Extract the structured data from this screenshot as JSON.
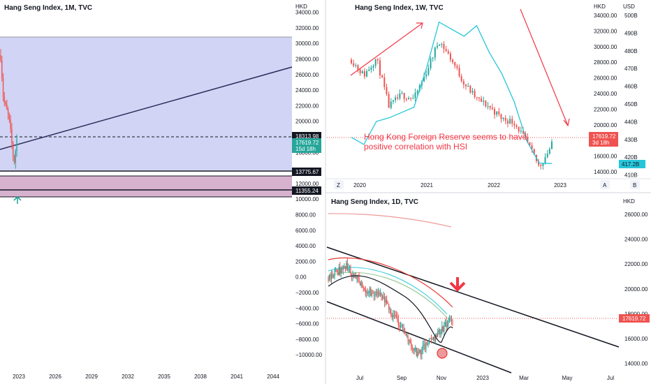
{
  "panels": {
    "monthly": {
      "title": "Hang Seng Index, 1M, TVC",
      "currency": "HKD",
      "price_ticks": [
        "34000.00",
        "32000.00",
        "30000.00",
        "28000.00",
        "26000.00",
        "24000.00",
        "22000.00",
        "20000.00",
        "18000.00",
        "16000.00",
        "12000.00",
        "10000.00",
        "8000.00",
        "6000.00",
        "4000.00",
        "2000.00",
        "0.00",
        "−2000.00",
        "−4000.00",
        "−6000.00",
        "−8000.00",
        "−10000.00"
      ],
      "time_ticks": [
        "2023",
        "2026",
        "2029",
        "2032",
        "2035",
        "2038",
        "2041",
        "2044"
      ],
      "price_badge": {
        "value": "17619.72",
        "countdown": "15d 18h",
        "color": "#26a69a"
      },
      "level_badges": [
        {
          "value": "18313.98",
          "color": "#131722"
        },
        {
          "value": "13775.67",
          "color": "#131722"
        },
        {
          "value": "11355.24",
          "color": "#131722"
        }
      ],
      "zone_color": "#d1d4f4",
      "lower_zone_color": "#d7b2cf",
      "arrow_color": "#26a69a",
      "trendline_color": "#2a2e5a"
    },
    "weekly": {
      "title": "Hang Seng Index, 1W, TVC",
      "currency_left": "HKD",
      "currency_right": "USD",
      "price_ticks": [
        "34000.00",
        "32000.00",
        "30000.00",
        "28000.00",
        "26000.00",
        "24000.00",
        "22000.00",
        "20000.00",
        "18000.00",
        "16000.00",
        "14000.00"
      ],
      "usd_ticks": [
        "500B",
        "490B",
        "480B",
        "470B",
        "460B",
        "450B",
        "440B",
        "430B",
        "420B",
        "410B"
      ],
      "time_ticks": [
        "2020",
        "2021",
        "2022",
        "2023"
      ],
      "price_badge": {
        "value": "17619.72",
        "countdown": "3d 18h",
        "color": "#ef5350"
      },
      "reserve_badge": {
        "value": "417.2B",
        "color": "#26c6da"
      },
      "annotation_line1": "Hong Kong Foreign Reserve seems to have",
      "annotation_line2": "positive correlation with HSI",
      "annotation_color": "#f23645",
      "reserve_line_color": "#26c6da",
      "footer_left": "Z",
      "footer_right_a": "A",
      "footer_right_b": "B"
    },
    "daily": {
      "title": "Hang Seng Index, 1D, TVC",
      "currency": "HKD",
      "price_ticks": [
        "26000.00",
        "24000.00",
        "22000.00",
        "20000.00",
        "18000.00",
        "16000.00",
        "14000.00"
      ],
      "time_ticks": [
        "Jul",
        "Sep",
        "Nov",
        "2023",
        "Mar",
        "May",
        "Jul"
      ],
      "price_badge": {
        "value": "17619.72",
        "color": "#ef5350"
      },
      "channel_color": "#131722",
      "down_arrow_color": "#f23645",
      "ma_colors": [
        "#ef9a9a",
        "#e53935",
        "#4dd0e1",
        "#9ccc9c",
        "#131722"
      ]
    }
  },
  "chart_data": [
    {
      "type": "line",
      "panel": "monthly",
      "title": "Hang Seng Index, 1M, TVC",
      "series": [
        {
          "x": [
            "2022-01",
            "2022-03",
            "2022-05",
            "2022-07",
            "2022-09",
            "2022-10",
            "2022-11"
          ],
          "values": [
            28500,
            23000,
            21500,
            20500,
            17500,
            14700,
            17619.72
          ]
        }
      ],
      "levels": [
        18313.98,
        13775.67,
        11355.24
      ],
      "last_price": 17619.72,
      "ylim": [
        -11000,
        35000
      ]
    },
    {
      "type": "line",
      "panel": "weekly",
      "title": "Hang Seng Index, 1W, TVC",
      "series": [
        {
          "x": [
            "2019-07",
            "2019-10",
            "2020-01",
            "2020-03",
            "2020-06",
            "2020-09",
            "2020-12",
            "2021-02",
            "2021-05",
            "2021-08",
            "2021-11",
            "2022-02",
            "2022-04",
            "2022-07",
            "2022-09",
            "2022-10",
            "2022-11"
          ],
          "values": [
            28500,
            26500,
            28700,
            22500,
            24000,
            23500,
            27000,
            31000,
            28500,
            25500,
            23500,
            22500,
            21000,
            20500,
            18000,
            14800,
            17619.72
          ]
        },
        {
          "x": [
            "2019-07",
            "2019-10",
            "2020-01",
            "2020-03",
            "2020-06",
            "2020-09",
            "2020-12",
            "2021-02",
            "2021-05",
            "2021-08",
            "2021-11",
            "2022-02",
            "2022-04",
            "2022-07",
            "2022-09",
            "2022-10",
            "2022-11"
          ],
          "values": [
            432,
            428,
            441,
            443,
            446,
            449,
            471,
            497,
            493,
            489,
            495,
            480,
            468,
            452,
            430,
            417.5,
            417.2
          ]
        }
      ],
      "last_price": 17619.72,
      "last_reserve": "417.2B",
      "ylim": [
        13000,
        34500
      ]
    },
    {
      "type": "line",
      "panel": "daily",
      "title": "Hang Seng Index, 1D, TVC",
      "series": [
        {
          "x": [
            "2022-06-01",
            "2022-07-01",
            "2022-08-01",
            "2022-09-01",
            "2022-10-01",
            "2022-10-24",
            "2022-11-04",
            "2022-11-15"
          ],
          "values": [
            21000,
            21800,
            20000,
            19300,
            17200,
            14700,
            16200,
            17619.72
          ]
        }
      ],
      "last_price": 17619.72,
      "ylim": [
        13500,
        26500
      ]
    }
  ]
}
